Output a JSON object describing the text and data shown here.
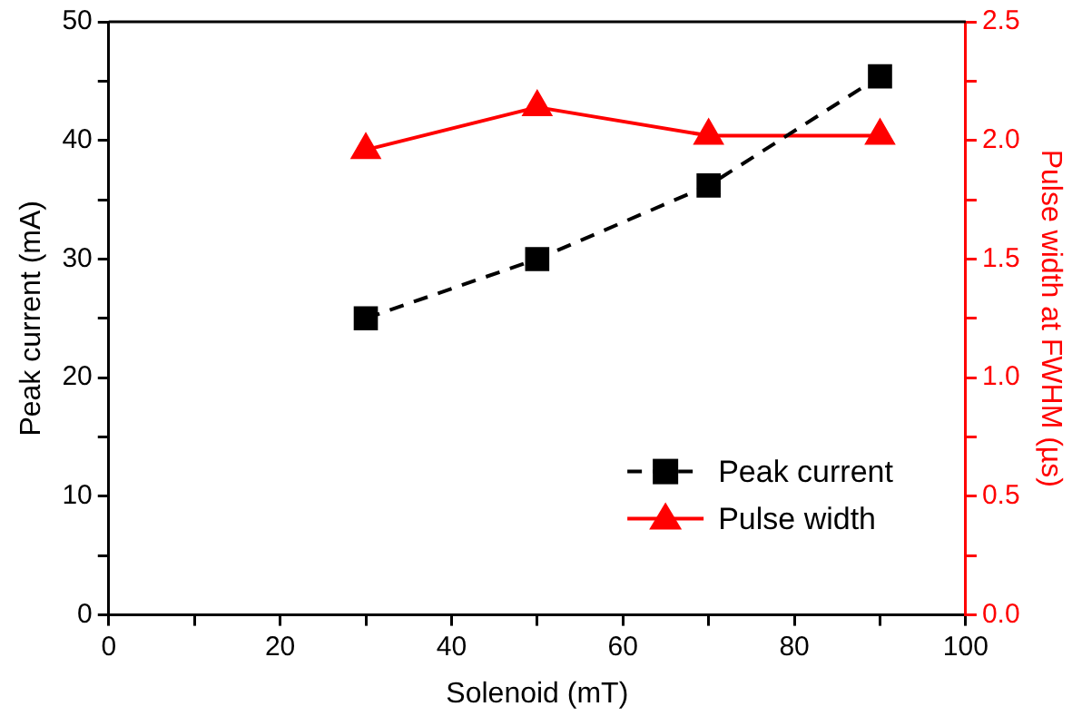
{
  "chart_data": {
    "type": "line",
    "xlabel": "Solenoid (mT)",
    "ylabel": "Peak current (mA)",
    "y2label": "Pulse width at FWHM (µs)",
    "x": [
      30,
      50,
      70,
      90
    ],
    "series": [
      {
        "name": "Peak current",
        "color": "#000000",
        "values": [
          25.0,
          30.0,
          36.2,
          45.4
        ],
        "marker": "square",
        "line_style": "dashed"
      },
      {
        "name": "Pulse width",
        "color": "#ff0000",
        "values": [
          1.96,
          2.14,
          2.02,
          2.02
        ],
        "marker": "triangle",
        "line_style": "solid",
        "axis": "y2"
      }
    ],
    "xlim": [
      0,
      100
    ],
    "xticks": [
      0,
      {
        "value": 10,
        "label": null
      },
      20,
      {
        "value": 30,
        "label": null
      },
      40,
      {
        "value": 50,
        "label": null
      },
      60,
      {
        "value": 70,
        "label": null
      },
      80,
      {
        "value": 90,
        "label": null
      },
      100
    ],
    "ylim": [
      0,
      50
    ],
    "yticks": [
      0,
      {
        "value": 5,
        "label": null
      },
      10,
      {
        "value": 15,
        "label": null
      },
      20,
      {
        "value": 25,
        "label": null
      },
      30,
      {
        "value": 35,
        "label": null
      },
      40,
      {
        "value": 45,
        "label": null
      },
      50
    ],
    "y2lim": [
      0,
      2.5
    ],
    "y2ticks": [
      {
        "value": 0,
        "label": "0.0"
      },
      {
        "value": 0.25,
        "label": null
      },
      {
        "value": 0.5,
        "label": "0.5"
      },
      {
        "value": 0.75,
        "label": null
      },
      {
        "value": 1,
        "label": "1.0"
      },
      {
        "value": 1.25,
        "label": null
      },
      {
        "value": 1.5,
        "label": "1.5"
      },
      {
        "value": 1.75,
        "label": null
      },
      {
        "value": 2,
        "label": "2.0"
      },
      {
        "value": 2.25,
        "label": null
      },
      {
        "value": 2.5,
        "label": "2.5"
      }
    ],
    "grid": false,
    "legend": "bottom right"
  }
}
